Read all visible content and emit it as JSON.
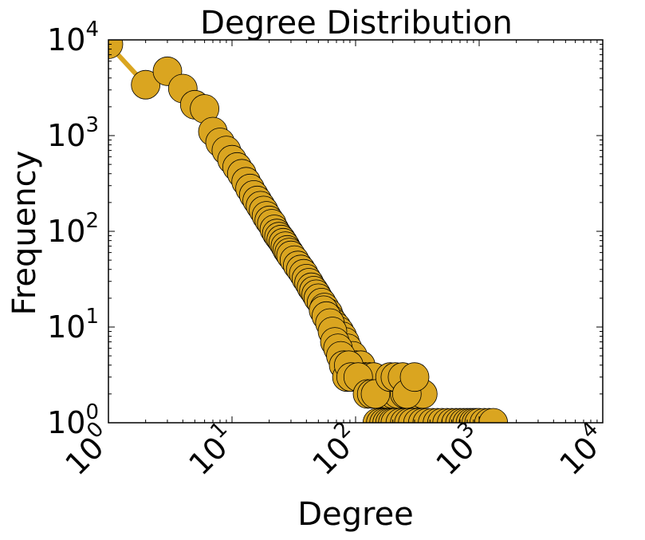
{
  "chart_data": {
    "type": "scatter",
    "title": "Degree Distribution",
    "xlabel": "Degree",
    "ylabel": "Frequency",
    "xscale": "log",
    "yscale": "log",
    "xlim": [
      1,
      10000
    ],
    "ylim": [
      1,
      10000
    ],
    "x_tick_labels": [
      {
        "base": "10",
        "exp": "0"
      },
      {
        "base": "10",
        "exp": "1"
      },
      {
        "base": "10",
        "exp": "2"
      },
      {
        "base": "10",
        "exp": "3"
      },
      {
        "base": "10",
        "exp": "4"
      }
    ],
    "y_tick_labels": [
      {
        "base": "10",
        "exp": "0"
      },
      {
        "base": "10",
        "exp": "1"
      },
      {
        "base": "10",
        "exp": "2"
      },
      {
        "base": "10",
        "exp": "3"
      },
      {
        "base": "10",
        "exp": "4"
      }
    ],
    "grid": false,
    "legend": "none",
    "series": [
      {
        "color": "#DAA520",
        "edgecolor": "#000000",
        "line_points": [
          [
            1,
            9000
          ],
          [
            2,
            3400
          ],
          [
            3,
            4700
          ]
        ],
        "points": [
          [
            1,
            9000
          ],
          [
            2,
            3400
          ],
          [
            3,
            4700
          ],
          [
            4,
            3100
          ],
          [
            5,
            2100
          ],
          [
            6,
            1900
          ],
          [
            7,
            1100
          ],
          [
            8,
            850
          ],
          [
            9,
            700
          ],
          [
            10,
            560
          ],
          [
            11,
            470
          ],
          [
            12,
            400
          ],
          [
            13,
            330
          ],
          [
            14,
            280
          ],
          [
            15,
            240
          ],
          [
            16,
            210
          ],
          [
            17,
            185
          ],
          [
            18,
            165
          ],
          [
            19,
            145
          ],
          [
            20,
            130
          ],
          [
            21,
            120
          ],
          [
            22,
            105
          ],
          [
            23,
            95
          ],
          [
            24,
            88
          ],
          [
            25,
            82
          ],
          [
            26,
            76
          ],
          [
            27,
            70
          ],
          [
            28,
            64
          ],
          [
            29,
            60
          ],
          [
            30,
            56
          ],
          [
            32,
            50
          ],
          [
            34,
            44
          ],
          [
            36,
            40
          ],
          [
            38,
            36
          ],
          [
            40,
            32
          ],
          [
            42,
            29
          ],
          [
            44,
            26
          ],
          [
            46,
            24
          ],
          [
            48,
            22
          ],
          [
            50,
            20
          ],
          [
            53,
            18
          ],
          [
            56,
            16
          ],
          [
            60,
            14
          ],
          [
            63,
            12
          ],
          [
            66,
            11
          ],
          [
            70,
            10
          ],
          [
            74,
            9
          ],
          [
            78,
            8
          ],
          [
            82,
            7
          ],
          [
            86,
            6
          ],
          [
            90,
            5
          ],
          [
            95,
            5
          ],
          [
            100,
            4
          ],
          [
            110,
            4
          ],
          [
            115,
            3
          ],
          [
            120,
            3
          ],
          [
            130,
            3
          ],
          [
            140,
            3
          ],
          [
            150,
            2
          ],
          [
            160,
            2
          ],
          [
            170,
            2
          ],
          [
            180,
            2
          ],
          [
            200,
            2
          ],
          [
            220,
            2
          ],
          [
            250,
            2
          ],
          [
            280,
            2
          ],
          [
            300,
            2
          ],
          [
            350,
            2
          ],
          [
            55,
            15
          ],
          [
            58,
            13
          ],
          [
            62,
            11
          ],
          [
            65,
            9
          ],
          [
            68,
            7
          ],
          [
            72,
            6
          ],
          [
            76,
            5
          ],
          [
            80,
            4
          ],
          [
            85,
            3
          ],
          [
            88,
            4
          ],
          [
            92,
            3
          ],
          [
            105,
            3
          ],
          [
            125,
            2
          ],
          [
            135,
            2
          ],
          [
            145,
            2
          ],
          [
            190,
            3
          ],
          [
            210,
            3
          ],
          [
            240,
            3
          ],
          [
            260,
            2
          ],
          [
            300,
            3
          ],
          [
            150,
            1
          ],
          [
            160,
            1
          ],
          [
            170,
            1
          ],
          [
            180,
            1
          ],
          [
            190,
            1
          ],
          [
            200,
            1
          ],
          [
            210,
            1
          ],
          [
            230,
            1
          ],
          [
            250,
            1
          ],
          [
            270,
            1
          ],
          [
            290,
            1
          ],
          [
            320,
            1
          ],
          [
            350,
            1
          ],
          [
            380,
            1
          ],
          [
            420,
            1
          ],
          [
            460,
            1
          ],
          [
            500,
            1
          ],
          [
            550,
            1
          ],
          [
            600,
            1
          ],
          [
            650,
            1
          ],
          [
            700,
            1
          ],
          [
            750,
            1
          ],
          [
            800,
            1
          ],
          [
            850,
            1
          ],
          [
            900,
            1
          ],
          [
            950,
            1
          ],
          [
            1000,
            1
          ],
          [
            1100,
            1
          ],
          [
            1200,
            1
          ],
          [
            1300,
            1
          ]
        ]
      }
    ]
  }
}
